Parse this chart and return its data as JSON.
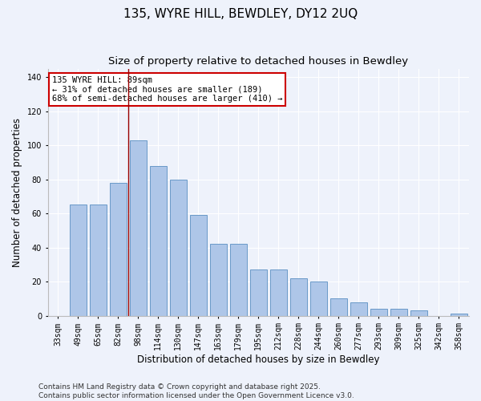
{
  "title": "135, WYRE HILL, BEWDLEY, DY12 2UQ",
  "subtitle": "Size of property relative to detached houses in Bewdley",
  "xlabel": "Distribution of detached houses by size in Bewdley",
  "ylabel": "Number of detached properties",
  "categories": [
    "33sqm",
    "49sqm",
    "65sqm",
    "82sqm",
    "98sqm",
    "114sqm",
    "130sqm",
    "147sqm",
    "163sqm",
    "179sqm",
    "195sqm",
    "212sqm",
    "228sqm",
    "244sqm",
    "260sqm",
    "277sqm",
    "293sqm",
    "309sqm",
    "325sqm",
    "342sqm",
    "358sqm"
  ],
  "values": [
    0,
    65,
    65,
    78,
    103,
    88,
    80,
    59,
    42,
    42,
    27,
    27,
    22,
    20,
    10,
    8,
    4,
    4,
    3,
    0,
    1
  ],
  "bar_color": "#aec6e8",
  "bar_edge_color": "#5a8fc2",
  "vline_x_index": 3.5,
  "vline_color": "#990000",
  "annotation_text": "135 WYRE HILL: 89sqm\n← 31% of detached houses are smaller (189)\n68% of semi-detached houses are larger (410) →",
  "annotation_box_color": "#ffffff",
  "annotation_box_edge_color": "#cc0000",
  "ylim": [
    0,
    145
  ],
  "yticks": [
    0,
    20,
    40,
    60,
    80,
    100,
    120,
    140
  ],
  "background_color": "#eef2fb",
  "footer_text": "Contains HM Land Registry data © Crown copyright and database right 2025.\nContains public sector information licensed under the Open Government Licence v3.0.",
  "title_fontsize": 11,
  "subtitle_fontsize": 9.5,
  "xlabel_fontsize": 8.5,
  "ylabel_fontsize": 8.5,
  "tick_fontsize": 7,
  "footer_fontsize": 6.5
}
